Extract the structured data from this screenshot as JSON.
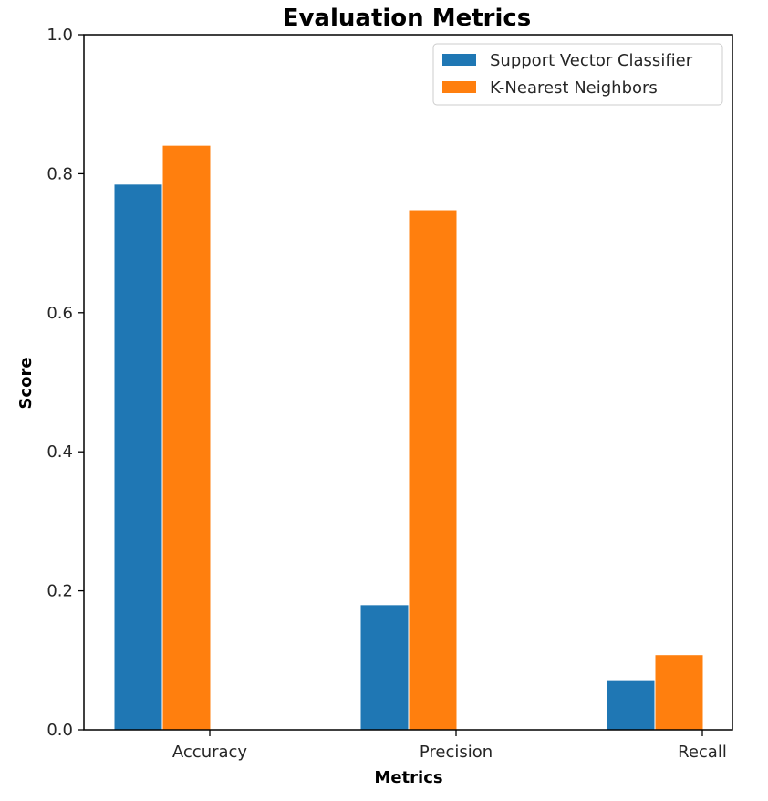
{
  "chart_data": {
    "type": "bar",
    "title": "Evaluation Metrics",
    "xlabel": "Metrics",
    "ylabel": "Score",
    "categories": [
      "Accuracy",
      "Precision",
      "Recall"
    ],
    "series": [
      {
        "name": "Support Vector Classifier",
        "values": [
          0.785,
          0.18,
          0.072
        ],
        "color": "#1f77b4"
      },
      {
        "name": "K-Nearest Neighbors",
        "values": [
          0.841,
          0.748,
          0.108
        ],
        "color": "#ff7f0e"
      }
    ],
    "ylim": [
      0.0,
      1.0
    ],
    "yticks": [
      0.0,
      0.2,
      0.4,
      0.6,
      0.8,
      1.0
    ],
    "ytick_labels": [
      "0.0",
      "0.2",
      "0.4",
      "0.6",
      "0.8",
      "1.0"
    ],
    "grid": false,
    "legend_position": "top-right"
  }
}
